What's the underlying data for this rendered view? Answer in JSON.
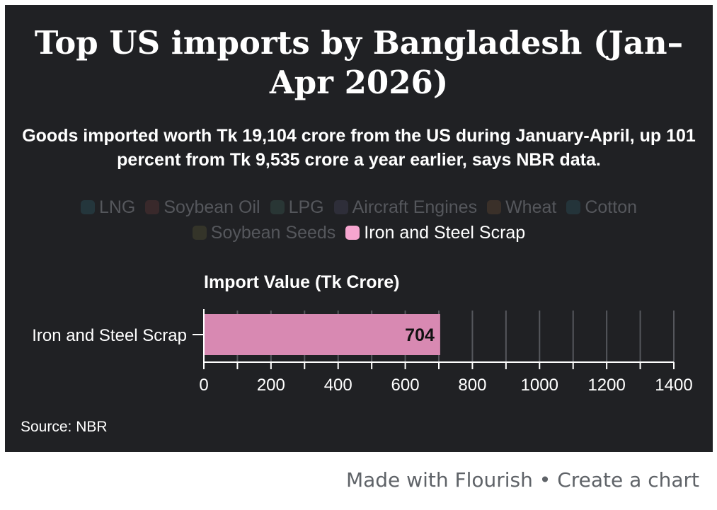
{
  "title": "Top US imports by Bangladesh (Jan–Apr 2026)",
  "subtitle": "Goods imported worth Tk 19,104 crore from the US during January-April, up 101 percent from Tk 9,535 crore a year earlier, says NBR data.",
  "legend": [
    {
      "label": "LNG",
      "color": "#2e5f6b",
      "active": false
    },
    {
      "label": "Soybean Oil",
      "color": "#6b3a3a",
      "active": false
    },
    {
      "label": "LPG",
      "color": "#3d5e55",
      "active": false
    },
    {
      "label": "Aircraft Engines",
      "color": "#4a4760",
      "active": false
    },
    {
      "label": "Wheat",
      "color": "#6e4c33",
      "active": false
    },
    {
      "label": "Cotton",
      "color": "#2f5863",
      "active": false
    },
    {
      "label": "Soybean Seeds",
      "color": "#5c5a33",
      "active": false
    },
    {
      "label": "Iron and Steel Scrap",
      "color": "#f6a5cf",
      "active": true
    }
  ],
  "source": "Source: NBR",
  "footer": {
    "made_with": "Made with Flourish",
    "separator": "•",
    "create": "Create a chart"
  },
  "chart_data": {
    "type": "bar",
    "orientation": "horizontal",
    "axis_title": "Import Value (Tk Crore)",
    "categories": [
      "Iron and Steel Scrap"
    ],
    "series": [
      {
        "name": "Iron and Steel Scrap",
        "values": [
          704
        ]
      }
    ],
    "data_labels": [
      "704"
    ],
    "xlim": [
      0,
      1400
    ],
    "x_ticks": [
      0,
      200,
      400,
      600,
      800,
      1000,
      1200,
      1400
    ],
    "minor_gridlines": [
      100,
      300,
      500,
      700,
      900,
      1100,
      1300
    ],
    "grid": true,
    "bar_color": "#d889b2"
  }
}
